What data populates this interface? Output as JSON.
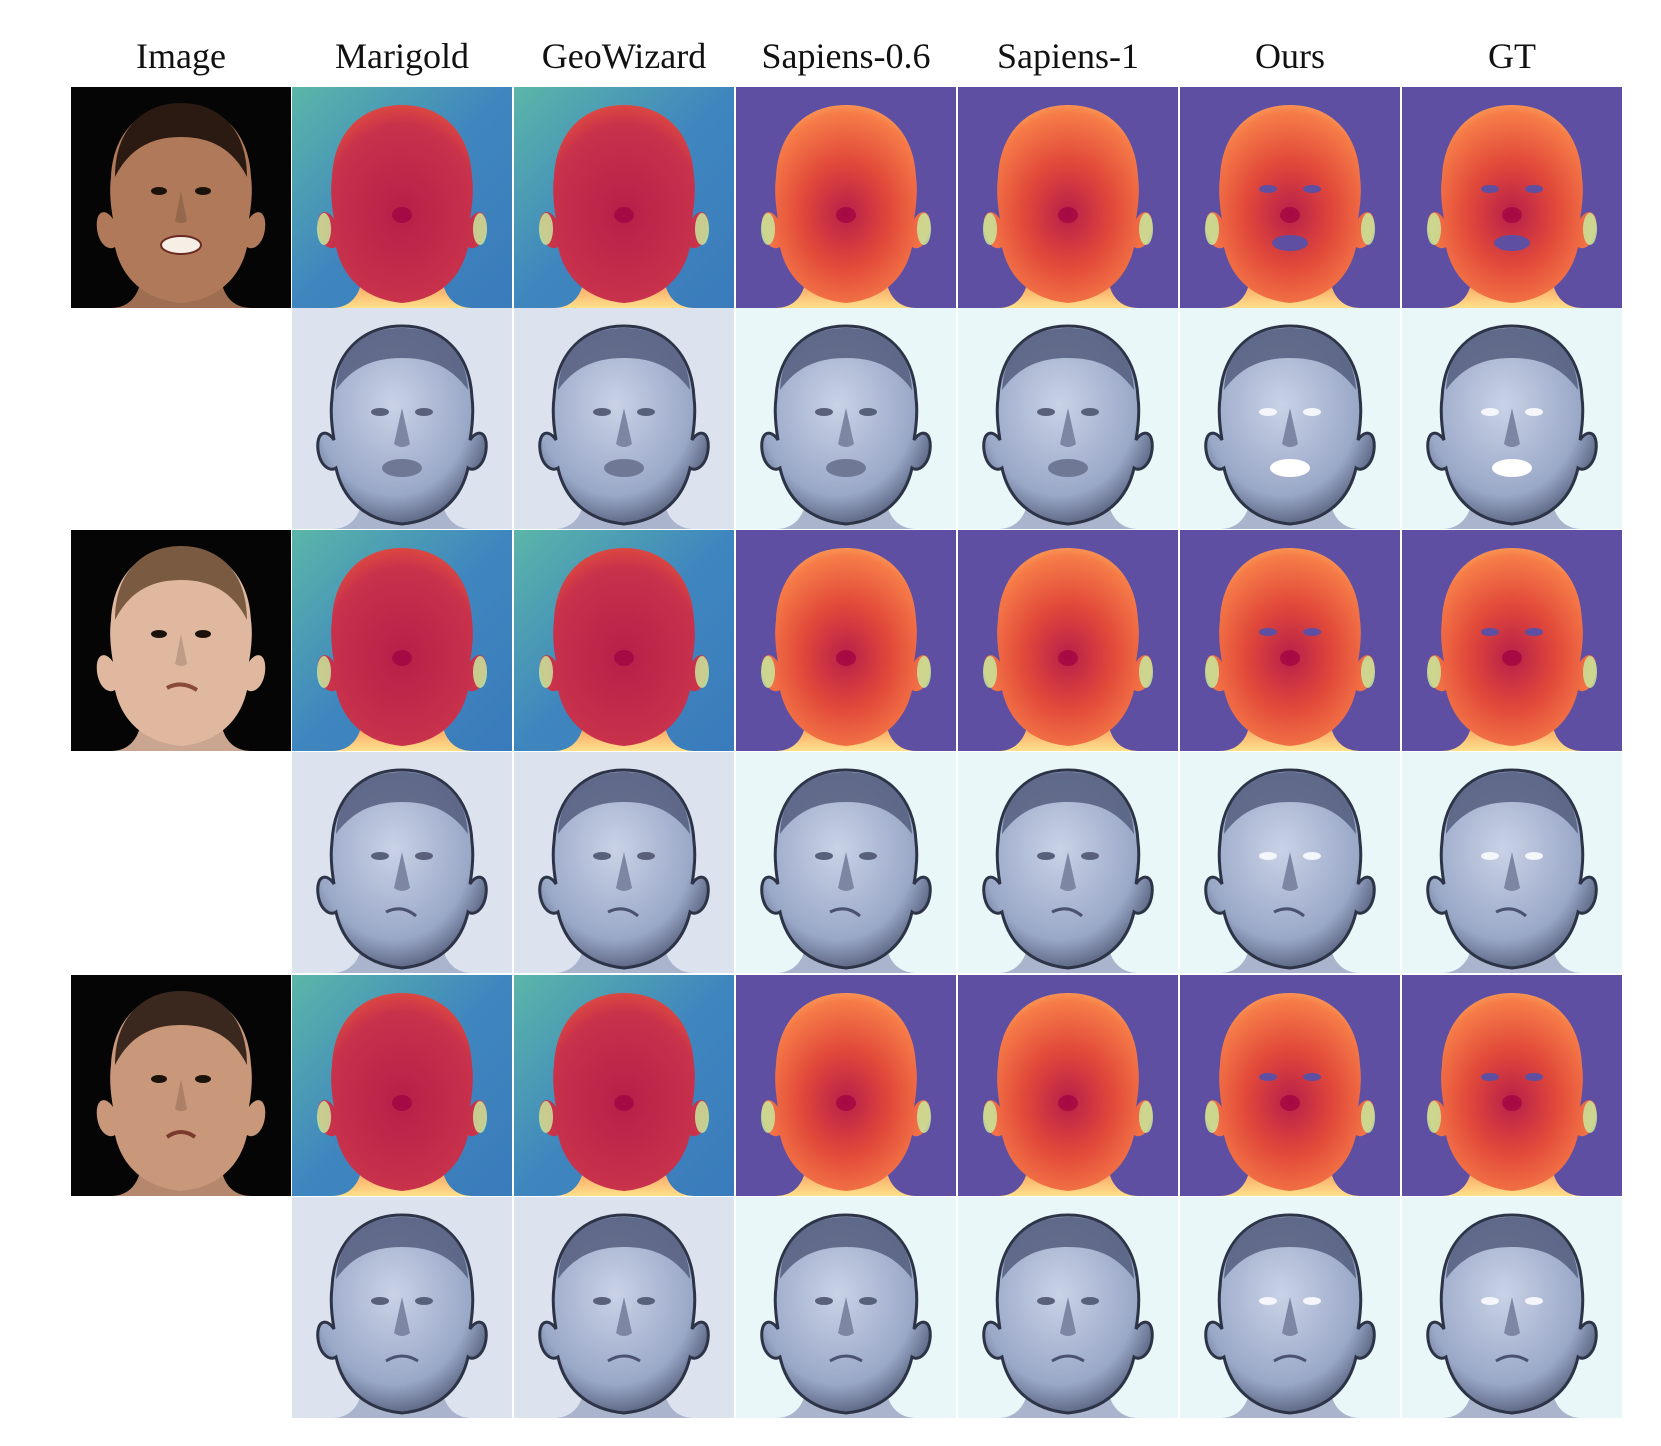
{
  "columns": [
    "Image",
    "Marigold",
    "GeoWizard",
    "Sapiens-0.6",
    "Sapiens-1",
    "Ours",
    "GT"
  ],
  "methods": [
    "marigold",
    "geowizard",
    "sapiens-06",
    "sapiens-1",
    "ours",
    "gt"
  ],
  "subjects": [
    {
      "id": "subject-1",
      "skin": "#b07a5a",
      "hair": "#2a1a12",
      "expression": "grin"
    },
    {
      "id": "subject-2",
      "skin": "#e0b8a0",
      "hair": "#7a5a40",
      "expression": "smirk"
    },
    {
      "id": "subject-3",
      "skin": "#c9977a",
      "hair": "#3a281e",
      "expression": "frown"
    }
  ],
  "colors": {
    "depth_bg_purple": "#5e4fa2",
    "depth_bg_blue": "#3f86bf",
    "depth_face": "#c8324b",
    "depth_skin_edge": "#f67c48",
    "depth_neck": "#fee08b",
    "normal_bg_light": "#e9f7f8",
    "normal_face": "#9aa8c8",
    "photo_bg": "#050505"
  }
}
